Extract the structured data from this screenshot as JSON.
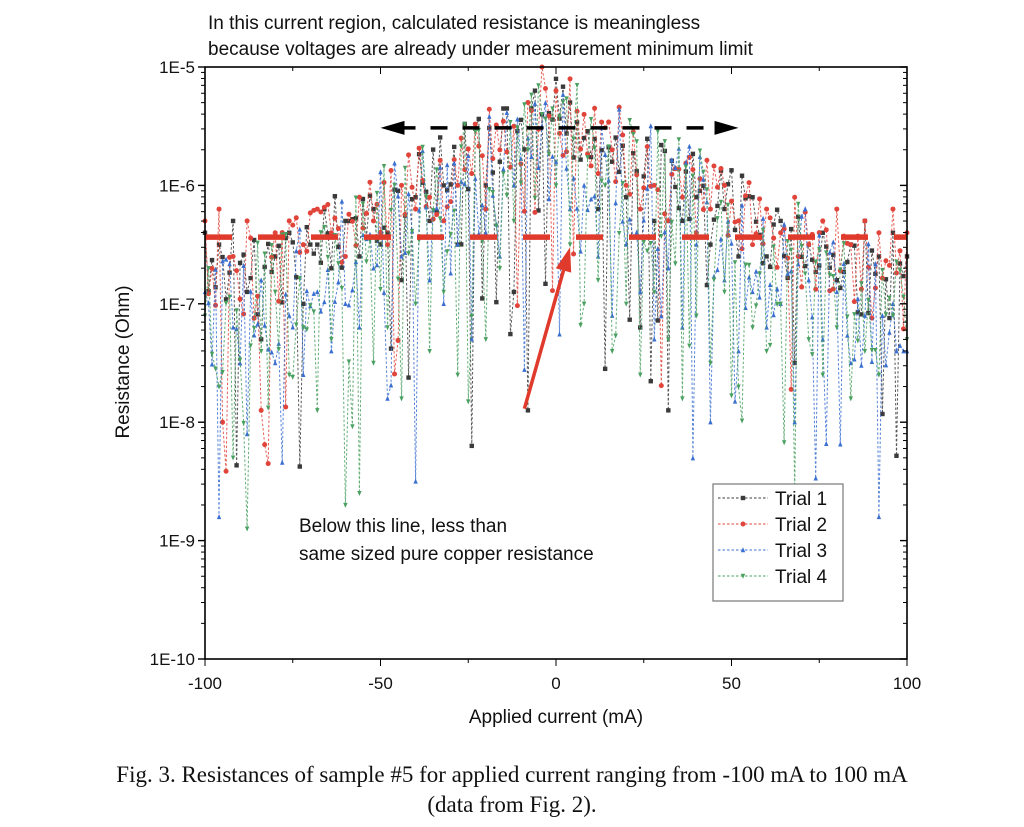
{
  "chart_data": {
    "type": "scatter",
    "title": "",
    "xlabel": "Applied current (mA)",
    "ylabel": "Resistance (Ohm)",
    "xlim": [
      -100,
      100
    ],
    "ylim": [
      1e-10,
      1e-05
    ],
    "yscale": "log",
    "x_ticks": [
      -100,
      -50,
      0,
      50,
      100
    ],
    "x_tick_labels": [
      "-100",
      "-50",
      "0",
      "50",
      "100"
    ],
    "y_ticks": [
      1e-10,
      1e-09,
      1e-08,
      1e-07,
      1e-06,
      1e-05
    ],
    "y_tick_labels": [
      "1E-10",
      "1E-9",
      "1E-8",
      "1E-7",
      "1E-6",
      "1E-5"
    ],
    "grid": false,
    "legend_position": "bottom-right",
    "x": [
      -100,
      -96,
      -92,
      -88,
      -84,
      -80,
      -76,
      -72,
      -68,
      -64,
      -60,
      -56,
      -52,
      -48,
      -44,
      -40,
      -36,
      -32,
      -28,
      -24,
      -20,
      -16,
      -12,
      -8,
      -4,
      0,
      4,
      8,
      12,
      16,
      20,
      24,
      28,
      32,
      36,
      40,
      44,
      48,
      52,
      56,
      60,
      64,
      68,
      72,
      76,
      80,
      84,
      88,
      92,
      96,
      100
    ],
    "series": [
      {
        "name": "Trial 1",
        "color": "#3a3a3a",
        "marker": "square",
        "log10_values": [
          -6.4,
          -6.5,
          -6.3,
          -6.9,
          -7.3,
          -6.6,
          -6.4,
          -7.0,
          -6.5,
          -6.7,
          -6.3,
          -6.6,
          -6.2,
          -6.4,
          -6.8,
          -6.1,
          -6.3,
          -6.0,
          -6.5,
          -8.2,
          -6.0,
          -5.8,
          -6.9,
          -7.9,
          -5.4,
          -5.1,
          -5.3,
          -5.6,
          -6.2,
          -5.8,
          -6.1,
          -7.2,
          -6.3,
          -7.9,
          -6.3,
          -6.1,
          -6.5,
          -6.2,
          -6.6,
          -6.1,
          -6.6,
          -6.3,
          -7.5,
          -6.5,
          -6.4,
          -6.8,
          -6.5,
          -6.3,
          -6.6,
          -6.4,
          -6.6
        ]
      },
      {
        "name": "Trial 2",
        "color": "#e0443a",
        "marker": "circle",
        "log10_values": [
          -6.3,
          -6.2,
          -6.6,
          -6.3,
          -7.9,
          -6.4,
          -6.3,
          -6.5,
          -6.2,
          -6.4,
          -6.6,
          -6.1,
          -6.3,
          -6.5,
          -6.0,
          -6.2,
          -6.1,
          -6.3,
          -6.0,
          -5.9,
          -6.2,
          -5.7,
          -5.5,
          -5.3,
          -5.0,
          -5.2,
          -5.1,
          -5.4,
          -5.9,
          -5.7,
          -6.0,
          -6.2,
          -6.0,
          -6.3,
          -6.1,
          -6.4,
          -6.2,
          -6.0,
          -6.3,
          -6.5,
          -6.2,
          -6.4,
          -6.1,
          -6.5,
          -6.3,
          -6.2,
          -6.5,
          -6.3,
          -6.4,
          -6.2,
          -6.4
        ]
      },
      {
        "name": "Trial 3",
        "color": "#3a6fd0",
        "marker": "triangle-up",
        "log10_values": [
          -6.9,
          -8.8,
          -7.2,
          -8.1,
          -6.8,
          -7.5,
          -7.1,
          -7.6,
          -6.9,
          -7.4,
          -7.0,
          -7.2,
          -6.7,
          -7.8,
          -6.6,
          -8.5,
          -6.8,
          -7.0,
          -6.5,
          -7.3,
          -6.4,
          -6.6,
          -6.0,
          -5.6,
          -5.5,
          -5.8,
          -6.2,
          -6.0,
          -6.6,
          -7.1,
          -6.5,
          -6.9,
          -7.3,
          -6.7,
          -7.2,
          -6.5,
          -8.0,
          -6.8,
          -7.4,
          -6.9,
          -7.2,
          -7.0,
          -8.0,
          -6.8,
          -7.3,
          -6.9,
          -7.5,
          -7.1,
          -8.8,
          -7.0,
          -7.4
        ]
      },
      {
        "name": "Trial 4",
        "color": "#4aa060",
        "marker": "triangle-down",
        "log10_values": [
          -7.1,
          -7.7,
          -8.3,
          -8.9,
          -7.4,
          -6.9,
          -7.6,
          -7.2,
          -7.9,
          -7.3,
          -8.7,
          -8.6,
          -7.5,
          -7.2,
          -7.8,
          -7.0,
          -7.4,
          -6.9,
          -7.6,
          -7.1,
          -7.3,
          -6.7,
          -6.3,
          -5.7,
          -5.4,
          -6.0,
          -6.5,
          -7.0,
          -6.8,
          -7.4,
          -7.0,
          -7.6,
          -6.9,
          -7.3,
          -7.8,
          -7.1,
          -7.5,
          -6.9,
          -7.7,
          -7.2,
          -7.4,
          -7.0,
          -8.6,
          -7.3,
          -7.6,
          -7.2,
          -7.8,
          -7.4,
          -7.6,
          -7.1,
          -7.3
        ]
      }
    ],
    "annotations": [
      {
        "id": "region-note",
        "text_lines": [
          "In this current region, calculated resistance is meaningless",
          "because voltages are already under measurement minimum limit"
        ]
      },
      {
        "id": "range-arrow",
        "type": "double-arrow-dashed",
        "color": "#000000",
        "x_from": -50,
        "x_to": 52,
        "y": 3e-06
      },
      {
        "id": "copper-line",
        "type": "hline-dashed",
        "color": "#e03a2c",
        "y": 3.66e-07,
        "x_from": -100,
        "x_to": 100
      },
      {
        "id": "copper-arrow",
        "type": "arrow",
        "color": "#e03a2c",
        "x_from": -9,
        "y_from": 1.3e-08,
        "x_to": 4,
        "y_to": 3e-07
      },
      {
        "id": "copper-note",
        "text_lines": [
          "Below this line, less than",
          "same sized pure copper resistance"
        ]
      }
    ]
  },
  "caption": {
    "line1": "Fig. 3. Resistances of sample #5 for applied current ranging from -100 mA to 100 mA",
    "line2": "(data from Fig. 2)."
  }
}
